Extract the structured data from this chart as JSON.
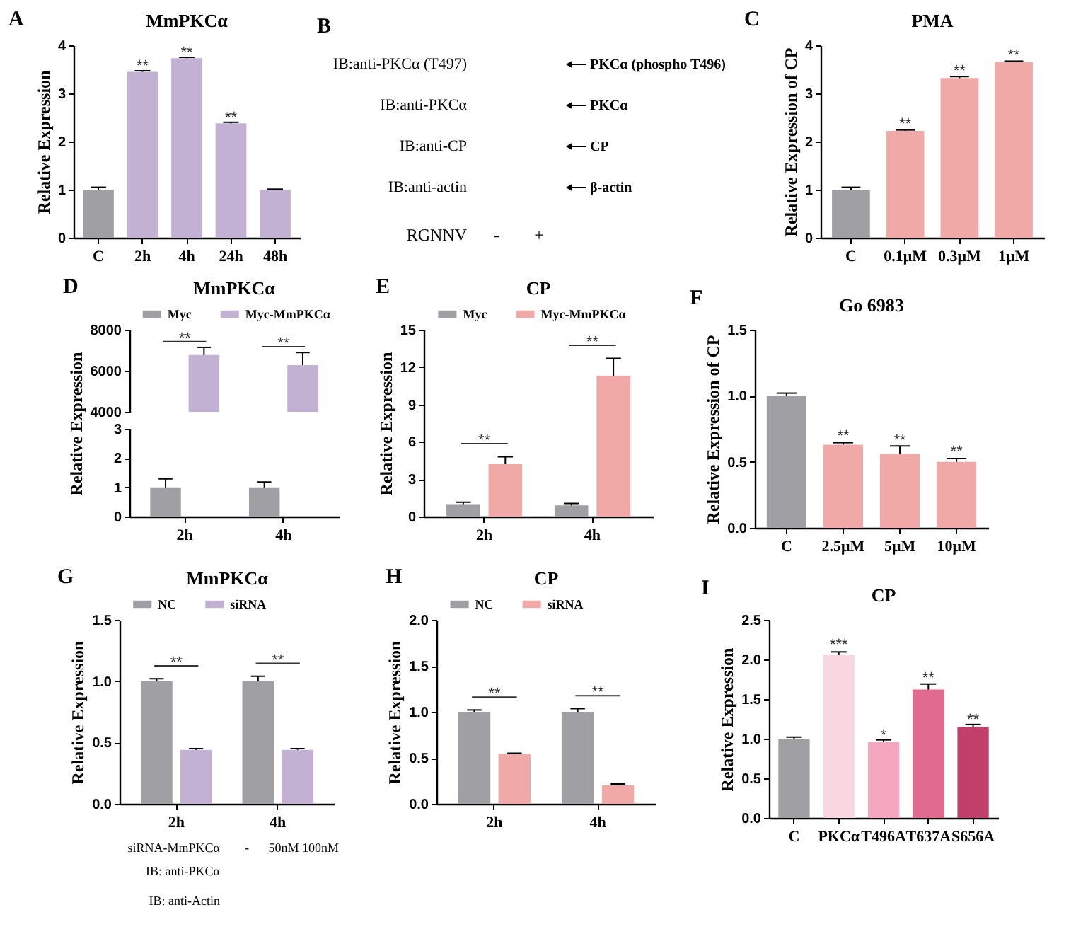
{
  "chart_data": [
    {
      "type": "bar",
      "title": "MmPKCα",
      "ylabel": "Relative Expression",
      "categories": [
        "C",
        "2h",
        "4h",
        "24h",
        "48h"
      ],
      "values": [
        1.0,
        3.45,
        3.73,
        2.38,
        1.0
      ],
      "errors": [
        0.05,
        0.02,
        0.02,
        0.02,
        0.01
      ],
      "colors": [
        "#a0a0a4",
        "#c3b1d3",
        "#c3b1d3",
        "#c3b1d3",
        "#c3b1d3"
      ],
      "ylim": [
        0,
        4
      ],
      "yticks": [
        0,
        1,
        2,
        3,
        4
      ],
      "annotations": [
        "A",
        {
          "text": "**",
          "x": "2h",
          "y": 3.5
        },
        {
          "text": "**",
          "x": "4h",
          "y": 3.78
        },
        {
          "text": "**",
          "x": "24h",
          "y": 2.43
        }
      ]
    },
    {
      "type": "other",
      "categories": [
        "-",
        "+"
      ],
      "y_categories": [
        "IB:anti-PKCα (T497)",
        "IB:anti-PKCα",
        "IB:anti-CP",
        "IB:anti-actin"
      ],
      "y2_categories": [
        "PKCα (phospho T496)",
        "PKCα",
        "CP",
        "β-actin"
      ],
      "xlabel": "RGNNV",
      "annotations": [
        "B"
      ]
    },
    {
      "type": "bar",
      "title": "PMA",
      "ylabel": "Relative Expression of CP",
      "categories": [
        "C",
        "0.1μM",
        "0.3μM",
        "1μM"
      ],
      "values": [
        1.0,
        2.22,
        3.32,
        3.65
      ],
      "errors": [
        0.05,
        0.02,
        0.03,
        0.02
      ],
      "colors": [
        "#a0a0a4",
        "#f1a9a7",
        "#f1a9a7",
        "#f1a9a7"
      ],
      "ylim": [
        0,
        4
      ],
      "yticks": [
        0,
        1,
        2,
        3,
        4
      ],
      "annotations": [
        "C",
        {
          "text": "**",
          "x": "0.1μM",
          "y": 2.3
        },
        {
          "text": "**",
          "x": "0.3μM",
          "y": 3.4
        },
        {
          "text": "**",
          "x": "1μM",
          "y": 3.72
        }
      ]
    },
    {
      "type": "bar",
      "title": "MmPKCα",
      "ylabel": "Relative Expression",
      "categories": [
        "2h",
        "4h"
      ],
      "series": [
        {
          "name": "Myc",
          "color": "#a0a0a4",
          "values": [
            null,
            null
          ],
          "errors": [
            null,
            null
          ]
        },
        {
          "name": "Myc-MmPKCα",
          "color": "#c3b1d3",
          "values": [
            6770,
            6280
          ],
          "errors": [
            370,
            610
          ]
        }
      ],
      "ylim": [
        4000,
        8000
      ],
      "yticks": [
        4000,
        6000,
        8000
      ],
      "legend": "top",
      "tick_labels": "y",
      "annotations": [
        "D",
        "**",
        "**"
      ]
    },
    {
      "type": "bar",
      "categories": [
        "2h",
        "4h"
      ],
      "series": [
        {
          "color": "#a0a0a4",
          "values": [
            1.0,
            1.0
          ],
          "errors": [
            0.29,
            0.18
          ]
        },
        {
          "color": "#c3b1d3",
          "values": [
            null,
            null
          ],
          "errors": [
            null,
            null
          ]
        }
      ],
      "ylim": [
        0,
        3
      ],
      "yticks": [
        0,
        1,
        2,
        3
      ]
    },
    {
      "type": "bar",
      "title": "CP",
      "ylabel": "Relative Expression",
      "categories": [
        "2h",
        "4h"
      ],
      "series": [
        {
          "name": "Myc",
          "color": "#a0a0a4",
          "values": [
            1.0,
            0.9
          ],
          "errors": [
            0.15,
            0.15
          ]
        },
        {
          "name": "Myc-MmPKCα",
          "color": "#f1a9a7",
          "values": [
            4.2,
            11.3
          ],
          "errors": [
            0.6,
            1.4
          ]
        }
      ],
      "ylim": [
        0,
        15
      ],
      "yticks": [
        0,
        3,
        6,
        9,
        12,
        15
      ],
      "legend": "top",
      "annotations": [
        "E",
        "**",
        "**"
      ]
    },
    {
      "type": "bar",
      "title": "Go 6983",
      "ylabel": "Relative Expression of CP",
      "categories": [
        "C",
        "2.5μM",
        "5μM",
        "10μM"
      ],
      "values": [
        1.0,
        0.63,
        0.56,
        0.5
      ],
      "errors": [
        0.02,
        0.015,
        0.06,
        0.025
      ],
      "colors": [
        "#a0a0a4",
        "#f1a9a7",
        "#f1a9a7",
        "#f1a9a7"
      ],
      "ylim": [
        0,
        1.5
      ],
      "yticks": [
        {
          "value": 0,
          "label": "0.0"
        },
        0.5,
        {
          "value": 1,
          "label": "1.0"
        },
        1.5
      ],
      "annotations": [
        "F",
        {
          "text": "**",
          "x": "2.5μM",
          "y": 0.67
        },
        {
          "text": "**",
          "x": "5μM",
          "y": 0.64
        },
        {
          "text": "**",
          "x": "10μM",
          "y": 0.55
        }
      ]
    },
    {
      "type": "bar",
      "title": "MmPKCα",
      "ylabel": "Relative Expression",
      "categories": [
        "2h",
        "4h"
      ],
      "series": [
        {
          "name": "NC",
          "color": "#a0a0a4",
          "values": [
            1.0,
            1.0
          ],
          "errors": [
            0.02,
            0.04
          ]
        },
        {
          "name": "siRNA",
          "color": "#c3b1d3",
          "values": [
            0.44,
            0.44
          ],
          "errors": [
            0.01,
            0.01
          ]
        }
      ],
      "ylim": [
        0,
        1.5
      ],
      "yticks": [
        {
          "value": 0,
          "label": "0.0"
        },
        0.5,
        {
          "value": 1,
          "label": "1.0"
        },
        1.5
      ],
      "legend": "top",
      "annotations": [
        "G",
        "**",
        "**"
      ]
    },
    {
      "type": "other",
      "categories": [
        "-",
        "50nM",
        "100nM"
      ],
      "x2label": "siRNA-MmPKCα",
      "y_categories": [
        "IB: anti-PKCα",
        "IB: anti-Actin"
      ]
    },
    {
      "type": "bar",
      "title": "CP",
      "ylabel": "Relative Expression",
      "categories": [
        "2h",
        "4h"
      ],
      "series": [
        {
          "name": "NC",
          "color": "#a0a0a4",
          "values": [
            1.0,
            1.0
          ],
          "errors": [
            0.02,
            0.035
          ]
        },
        {
          "name": "siRNA",
          "color": "#f1a9a7",
          "values": [
            0.54,
            0.2
          ],
          "errors": [
            0.01,
            0.015
          ]
        }
      ],
      "ylim": [
        0,
        2
      ],
      "yticks": [
        {
          "value": 0,
          "label": "0.0"
        },
        0.5,
        {
          "value": 1,
          "label": "1.0"
        },
        1.5,
        {
          "value": 2,
          "label": "2.0"
        }
      ],
      "legend": "top",
      "annotations": [
        "H",
        "**",
        "**"
      ]
    },
    {
      "type": "bar",
      "title": "CP",
      "ylabel": "Relative Expression",
      "categories": [
        "C",
        "PKCα",
        "T496A",
        "T637A",
        "S656A"
      ],
      "values": [
        0.99,
        2.06,
        0.96,
        1.62,
        1.15
      ],
      "errors": [
        0.03,
        0.035,
        0.025,
        0.07,
        0.03
      ],
      "colors": [
        "#a0a0a4",
        "#f8d7e1",
        "#f5a7bf",
        "#e16b8f",
        "#c0406b"
      ],
      "ylim": [
        0,
        2.5
      ],
      "yticks": [
        {
          "value": 0,
          "label": "0.0"
        },
        0.5,
        {
          "value": 1,
          "label": "1.0"
        },
        1.5,
        {
          "value": 2,
          "label": "2.0"
        },
        2.5
      ],
      "annotations": [
        "I",
        {
          "text": "***",
          "x": "PKCα",
          "y": 2.14
        },
        {
          "text": "*",
          "x": "T496A",
          "y": 1.0
        },
        {
          "text": "**",
          "x": "T637A",
          "y": 1.72
        },
        {
          "text": "**",
          "x": "S656A",
          "y": 1.2
        }
      ]
    }
  ]
}
